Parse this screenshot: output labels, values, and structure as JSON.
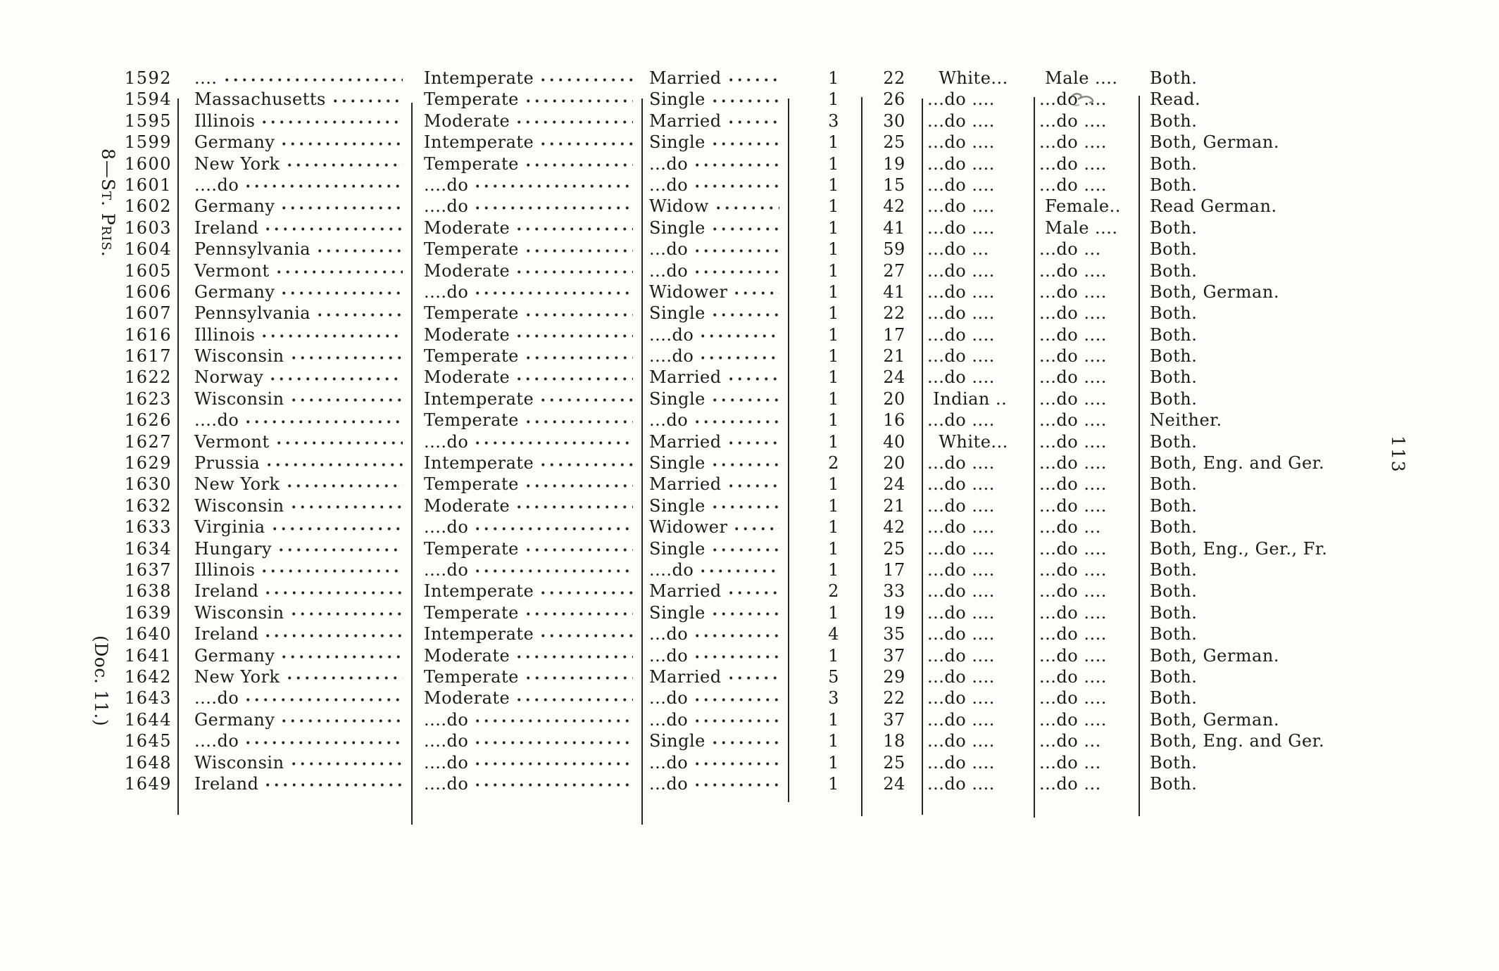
{
  "page": {
    "signature_note": "8—St. Pris.",
    "doc_note": "(Doc. 11.)",
    "page_number": "113"
  },
  "table": {
    "rows": [
      {
        "no": "1592",
        "nativity": "....",
        "habits": "Intemperate",
        "marital": "Married",
        "count": "1",
        "age": "22",
        "color": "  White...",
        "sex": " Male ....",
        "reads": "Both."
      },
      {
        "no": "1594",
        "nativity": "Massachusetts",
        "habits": "Temperate",
        "marital": "Single",
        "count": "1",
        "age": "26",
        "color": "...do ....",
        "sex": "...do ....",
        "reads": "Read."
      },
      {
        "no": "1595",
        "nativity": "Illinois",
        "habits": "Moderate",
        "marital": "Married",
        "count": "3",
        "age": "30",
        "color": "...do ....",
        "sex": "...do ....",
        "reads": "Both."
      },
      {
        "no": "1599",
        "nativity": "Germany",
        "habits": "Intemperate",
        "marital": "Single",
        "count": "1",
        "age": "25",
        "color": "...do ....",
        "sex": "...do ....",
        "reads": "Both, German."
      },
      {
        "no": "1600",
        "nativity": "New York",
        "habits": "Temperate",
        "marital": "...do",
        "count": "1",
        "age": "19",
        "color": "...do ....",
        "sex": "...do ....",
        "reads": "Both."
      },
      {
        "no": "1601",
        "nativity": "....do",
        "habits": "....do",
        "marital": "...do",
        "count": "1",
        "age": "15",
        "color": "...do ....",
        "sex": "...do ....",
        "reads": "Both."
      },
      {
        "no": "1602",
        "nativity": "Germany",
        "habits": "....do",
        "marital": "Widow",
        "count": "1",
        "age": "42",
        "color": "...do ....",
        "sex": " Female..",
        "reads": "Read German."
      },
      {
        "no": "1603",
        "nativity": "Ireland",
        "habits": "Moderate",
        "marital": "Single",
        "count": "1",
        "age": "41",
        "color": "...do ....",
        "sex": " Male ....",
        "reads": "Both."
      },
      {
        "no": "1604",
        "nativity": "Pennsylvania",
        "habits": "Temperate",
        "marital": "...do",
        "count": "1",
        "age": "59",
        "color": "...do ...",
        "sex": "...do ...",
        "reads": "Both."
      },
      {
        "no": "1605",
        "nativity": "Vermont",
        "habits": "Moderate",
        "marital": "...do",
        "count": "1",
        "age": "27",
        "color": "...do ....",
        "sex": "...do ....",
        "reads": "Both."
      },
      {
        "no": "1606",
        "nativity": "Germany",
        "habits": "....do",
        "marital": "Widower",
        "count": "1",
        "age": "41",
        "color": "...do ....",
        "sex": "...do ....",
        "reads": "Both, German."
      },
      {
        "no": "1607",
        "nativity": "Pennsylvania",
        "habits": "Temperate",
        "marital": "Single",
        "count": "1",
        "age": "22",
        "color": "...do ....",
        "sex": "...do ....",
        "reads": "Both."
      },
      {
        "no": "1616",
        "nativity": "Illinois",
        "habits": "Moderate",
        "marital": "....do",
        "count": "1",
        "age": "17",
        "color": "...do ....",
        "sex": "...do ....",
        "reads": "Both."
      },
      {
        "no": "1617",
        "nativity": "Wisconsin",
        "habits": "Temperate",
        "marital": "....do",
        "count": "1",
        "age": "21",
        "color": "...do ....",
        "sex": "...do ....",
        "reads": "Both."
      },
      {
        "no": "1622",
        "nativity": "Norway",
        "habits": "Moderate",
        "marital": "Married",
        "count": "1",
        "age": "24",
        "color": "...do ....",
        "sex": "...do ....",
        "reads": "Both."
      },
      {
        "no": "1623",
        "nativity": "Wisconsin",
        "habits": "Intemperate",
        "marital": "Single",
        "count": "1",
        "age": "20",
        "color": " Indian ..",
        "sex": "...do ....",
        "reads": "Both."
      },
      {
        "no": "1626",
        "nativity": "....do",
        "habits": "Temperate",
        "marital": "...do",
        "count": "1",
        "age": "16",
        "color": "...do ....",
        "sex": "...do ....",
        "reads": "Neither."
      },
      {
        "no": "1627",
        "nativity": "Vermont",
        "habits": "....do",
        "marital": "Married",
        "count": "1",
        "age": "40",
        "color": "  White...",
        "sex": "...do ....",
        "reads": "Both."
      },
      {
        "no": "1629",
        "nativity": "Prussia",
        "habits": "Intemperate",
        "marital": "Single",
        "count": "2",
        "age": "20",
        "color": "...do ....",
        "sex": "...do ....",
        "reads": "Both, Eng. and Ger."
      },
      {
        "no": "1630",
        "nativity": "New York",
        "habits": "Temperate",
        "marital": "Married",
        "count": "1",
        "age": "24",
        "color": "...do ....",
        "sex": "...do ....",
        "reads": "Both."
      },
      {
        "no": "1632",
        "nativity": "Wisconsin",
        "habits": "Moderate",
        "marital": "Single",
        "count": "1",
        "age": "21",
        "color": "...do ....",
        "sex": "...do ....",
        "reads": "Both."
      },
      {
        "no": "1633",
        "nativity": "Virginia",
        "habits": "....do",
        "marital": "Widower",
        "count": "1",
        "age": "42",
        "color": "...do ....",
        "sex": "...do ...",
        "reads": "Both."
      },
      {
        "no": "1634",
        "nativity": "Hungary",
        "habits": "Temperate",
        "marital": "Single",
        "count": "1",
        "age": "25",
        "color": "...do ....",
        "sex": "...do ....",
        "reads": "Both, Eng., Ger., Fr."
      },
      {
        "no": "1637",
        "nativity": "Illinois",
        "habits": "....do",
        "marital": "....do",
        "count": "1",
        "age": "17",
        "color": "...do ....",
        "sex": "...do ....",
        "reads": "Both."
      },
      {
        "no": "1638",
        "nativity": "Ireland",
        "habits": "Intemperate",
        "marital": "Married",
        "count": "2",
        "age": "33",
        "color": "...do ....",
        "sex": "...do ....",
        "reads": "Both."
      },
      {
        "no": "1639",
        "nativity": "Wisconsin",
        "habits": "Temperate",
        "marital": "Single",
        "count": "1",
        "age": "19",
        "color": "...do ....",
        "sex": "...do ....",
        "reads": "Both."
      },
      {
        "no": "1640",
        "nativity": "Ireland",
        "habits": "Intemperate",
        "marital": "...do",
        "count": "4",
        "age": "35",
        "color": "...do ....",
        "sex": "...do ....",
        "reads": "Both."
      },
      {
        "no": "1641",
        "nativity": "Germany",
        "habits": "Moderate",
        "marital": "...do",
        "count": "1",
        "age": "37",
        "color": "...do ....",
        "sex": "...do ....",
        "reads": "Both, German."
      },
      {
        "no": "1642",
        "nativity": "New York",
        "habits": "Temperate",
        "marital": "Married",
        "count": "5",
        "age": "29",
        "color": "...do ....",
        "sex": "...do ....",
        "reads": "Both."
      },
      {
        "no": "1643",
        "nativity": "....do",
        "habits": "Moderate",
        "marital": "...do",
        "count": "3",
        "age": "22",
        "color": "...do ....",
        "sex": "...do ....",
        "reads": "Both."
      },
      {
        "no": "1644",
        "nativity": "Germany",
        "habits": "....do",
        "marital": "...do",
        "count": "1",
        "age": "37",
        "color": "...do ....",
        "sex": "...do ....",
        "reads": "Both, German."
      },
      {
        "no": "1645",
        "nativity": "....do",
        "habits": "....do",
        "marital": "Single",
        "count": "1",
        "age": "18",
        "color": "...do ....",
        "sex": "...do ...",
        "reads": "Both, Eng. and Ger."
      },
      {
        "no": "1648",
        "nativity": "Wisconsin",
        "habits": "....do",
        "marital": "...do",
        "count": "1",
        "age": "25",
        "color": "...do ....",
        "sex": "...do ...",
        "reads": "Both."
      },
      {
        "no": "1649",
        "nativity": "Ireland",
        "habits": "....do",
        "marital": "...do",
        "count": "1",
        "age": "24",
        "color": "...do ....",
        "sex": "...do ...",
        "reads": "Both."
      }
    ]
  }
}
